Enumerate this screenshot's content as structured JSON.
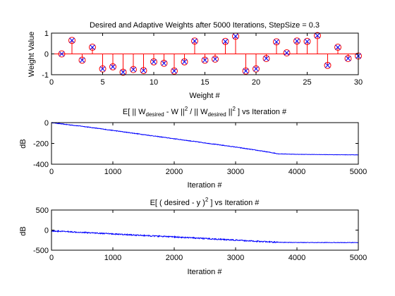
{
  "chart_data": [
    {
      "type": "stem",
      "title": "Desired and Adaptive Weights after 5000 Iterations, StepSize = 0.3",
      "xlabel": "Weight #",
      "ylabel": "Weight Value",
      "xlim": [
        0,
        30
      ],
      "ylim": [
        -1,
        1
      ],
      "xticks": [
        "0",
        "5",
        "10",
        "15",
        "20",
        "25",
        "30"
      ],
      "yticks": [
        "1",
        "0",
        "-1"
      ],
      "colors": {
        "stem": "#ff0000",
        "desired_marker": "#ff0000",
        "adaptive_marker": "#0000ff"
      },
      "series": [
        {
          "marker": "circle",
          "x": [
            1,
            2,
            3,
            4,
            5,
            6,
            7,
            8,
            9,
            10,
            11,
            12,
            13,
            14,
            15,
            16,
            17,
            18,
            19,
            20,
            21,
            22,
            23,
            24,
            25,
            26,
            27,
            28,
            29,
            30
          ],
          "values": [
            0.0,
            0.65,
            -0.3,
            0.32,
            -0.72,
            -0.62,
            -0.88,
            -0.75,
            -0.8,
            -0.38,
            -0.45,
            -0.82,
            -0.38,
            0.62,
            -0.3,
            -0.25,
            0.6,
            0.85,
            -0.82,
            -0.72,
            -0.22,
            0.58,
            0.05,
            0.62,
            0.6,
            0.88,
            -0.55,
            0.32,
            -0.22,
            -0.1
          ]
        },
        {
          "marker": "x",
          "x": [
            1,
            2,
            3,
            4,
            5,
            6,
            7,
            8,
            9,
            10,
            11,
            12,
            13,
            14,
            15,
            16,
            17,
            18,
            19,
            20,
            21,
            22,
            23,
            24,
            25,
            26,
            27,
            28,
            29,
            30
          ],
          "values": [
            0.0,
            0.65,
            -0.3,
            0.32,
            -0.72,
            -0.62,
            -0.88,
            -0.75,
            -0.8,
            -0.38,
            -0.45,
            -0.82,
            -0.38,
            0.62,
            -0.3,
            -0.25,
            0.6,
            0.85,
            -0.82,
            -0.72,
            -0.22,
            0.58,
            0.05,
            0.62,
            0.6,
            0.88,
            -0.55,
            0.32,
            -0.22,
            -0.1
          ]
        }
      ]
    },
    {
      "type": "line",
      "title_parts": {
        "p1": "E[ || W",
        "sub1": "desired",
        "p2": " - W ||",
        "sup1": "2",
        "p3": " / || W",
        "sub2": "desired",
        "p4": " ||",
        "sup2": "2",
        "p5": " ] vs Iteration #"
      },
      "xlabel": "Iteration #",
      "ylabel": "dB",
      "xlim": [
        0,
        5000
      ],
      "ylim": [
        -400,
        0
      ],
      "xticks": [
        "0",
        "1000",
        "2000",
        "3000",
        "4000",
        "5000"
      ],
      "yticks": [
        "0",
        "-200",
        "-400"
      ],
      "color": "#0000ff",
      "series": [
        {
          "x": [
            0,
            200,
            500,
            1000,
            1500,
            2000,
            2500,
            3000,
            3500,
            3700,
            4000,
            4500,
            5000
          ],
          "values": [
            0,
            -15,
            -35,
            -75,
            -115,
            -155,
            -195,
            -235,
            -280,
            -300,
            -305,
            -308,
            -310
          ]
        }
      ]
    },
    {
      "type": "line",
      "title_parts": {
        "p1": "E[ ( desired - y )",
        "sup1": "2",
        "p2": " ] vs Iteration #"
      },
      "xlabel": "Iteration #",
      "ylabel": "dB",
      "xlim": [
        0,
        5000
      ],
      "ylim": [
        -500,
        500
      ],
      "xticks": [
        "0",
        "1000",
        "2000",
        "3000",
        "4000",
        "5000"
      ],
      "yticks": [
        "500",
        "0",
        "-500"
      ],
      "color": "#0000ff",
      "series": [
        {
          "x": [
            0,
            500,
            1000,
            1500,
            2000,
            2500,
            3000,
            3500,
            3700,
            4000,
            4500,
            5000
          ],
          "values": [
            -20,
            -55,
            -95,
            -135,
            -170,
            -210,
            -250,
            -290,
            -305,
            -308,
            -310,
            -310
          ]
        }
      ]
    }
  ]
}
